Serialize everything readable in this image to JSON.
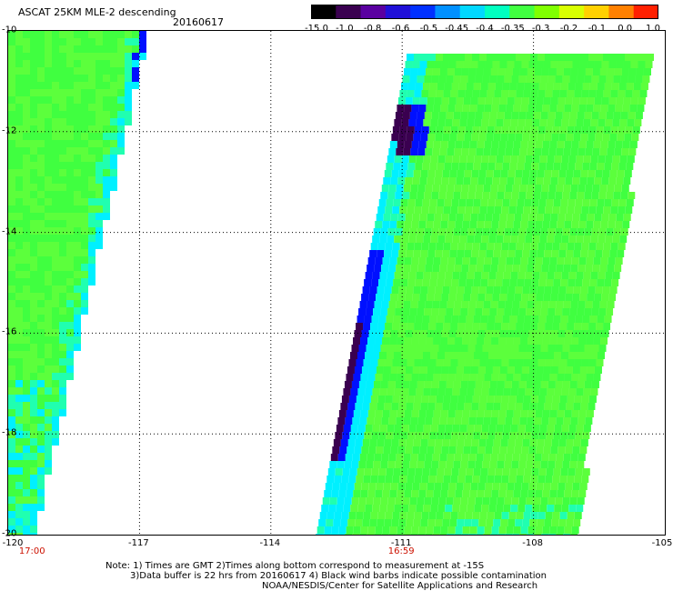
{
  "header": {
    "title": "ASCAT 25KM MLE-2 descending",
    "date": "20160617"
  },
  "color_scale": {
    "labels": [
      "-15.0",
      "-1.0",
      "-0.8",
      "-0.6",
      "-0.5",
      "-0.45",
      "-0.4",
      "-0.35",
      "-0.3",
      "-0.2",
      "-0.1",
      "0.0",
      "1.0"
    ],
    "colors": [
      "#000000",
      "#3a0050",
      "#5a00a0",
      "#2010d8",
      "#0030ff",
      "#0090ff",
      "#00d8ff",
      "#00ffc0",
      "#40ff40",
      "#80ff00",
      "#d8ff00",
      "#ffd000",
      "#ff8000",
      "#ff2000"
    ]
  },
  "map": {
    "lat_labels": [
      "-10",
      "-12",
      "-14",
      "-16",
      "-18",
      "-20"
    ],
    "lon_labels": [
      "-120",
      "-117",
      "-114",
      "-111",
      "-108",
      "-105"
    ],
    "time_labels": [
      "17:00",
      "16:59"
    ],
    "lat_range": [
      -20,
      -10
    ],
    "lon_range": [
      -120,
      -105
    ],
    "grid": true,
    "swath_colors": {
      "dark": "#3a0050",
      "blue": "#0010ff",
      "cyan": "#00f0ff",
      "teal": "#20ffb0",
      "green": "#40ff40",
      "lightgreen": "#5cff3c"
    }
  },
  "footer": {
    "note_line1": "Note: 1) Times are GMT 2)Times along bottom correspond to measurement at -15S",
    "note_line2": "3)Data buffer is 22 hrs from 20160617 4) Black wind barbs indicate possible contamination",
    "note_line3": "NOAA/NESDIS/Center for Satellite Applications and Research"
  }
}
